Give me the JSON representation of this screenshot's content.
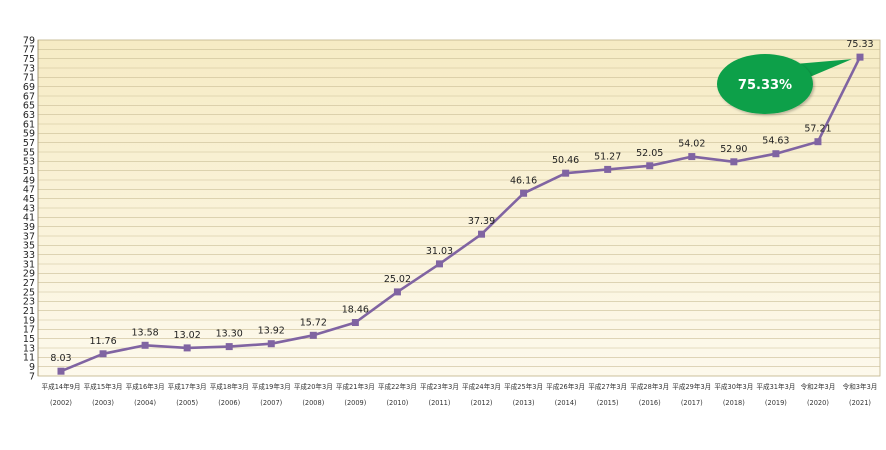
{
  "chart_data": {
    "type": "line",
    "title": "",
    "xlabel": "",
    "ylabel": "",
    "ylim": [
      7,
      79
    ],
    "y_ticks": [
      7,
      9,
      11,
      13,
      15,
      17,
      19,
      21,
      23,
      25,
      27,
      29,
      31,
      33,
      35,
      37,
      39,
      41,
      43,
      45,
      47,
      49,
      51,
      53,
      55,
      57,
      59,
      61,
      63,
      65,
      67,
      69,
      71,
      73,
      75,
      77,
      79
    ],
    "grid": true,
    "legend": "none",
    "colors": {
      "line": "#8064a2",
      "plot_bg_top": "#f6ebc4",
      "plot_bg_bottom": "#fdf9ec",
      "grid": "#cbbf98",
      "callout": "#0ea04a"
    },
    "categories": [
      "平成14年9月",
      "平成15年3月",
      "平成16年3月",
      "平成17年3月",
      "平成18年3月",
      "平成19年3月",
      "平成20年3月",
      "平成21年3月",
      "平成22年3月",
      "平成23年3月",
      "平成24年3月",
      "平成25年3月",
      "平成26年3月",
      "平成27年3月",
      "平成28年3月",
      "平成29年3月",
      "平成30年3月",
      "平成31年3月",
      "令和2年3月",
      "令和3年3月"
    ],
    "years": [
      "(2002)",
      "(2003)",
      "(2004)",
      "(2005)",
      "(2006)",
      "(2007)",
      "(2008)",
      "(2009)",
      "(2010)",
      "(2011)",
      "(2012)",
      "(2013)",
      "(2014)",
      "(2015)",
      "(2016)",
      "(2017)",
      "(2018)",
      "(2019)",
      "(2020)",
      "(2021)"
    ],
    "series": [
      {
        "values": [
          8.03,
          11.76,
          13.58,
          13.02,
          13.3,
          13.92,
          15.72,
          18.46,
          25.02,
          31.03,
          37.39,
          46.16,
          50.46,
          51.27,
          52.05,
          54.02,
          52.9,
          54.63,
          57.21,
          75.33
        ]
      }
    ],
    "data_labels": [
      "8.03",
      "11.76",
      "13.58",
      "13.02",
      "13.30",
      "13.92",
      "15.72",
      "18.46",
      "25.02",
      "31.03",
      "37.39",
      "46.16",
      "50.46",
      "51.27",
      "52.05",
      "54.02",
      "52.90",
      "54.63",
      "57.21",
      "75.33"
    ],
    "annotation": {
      "text": "75.33%"
    }
  }
}
